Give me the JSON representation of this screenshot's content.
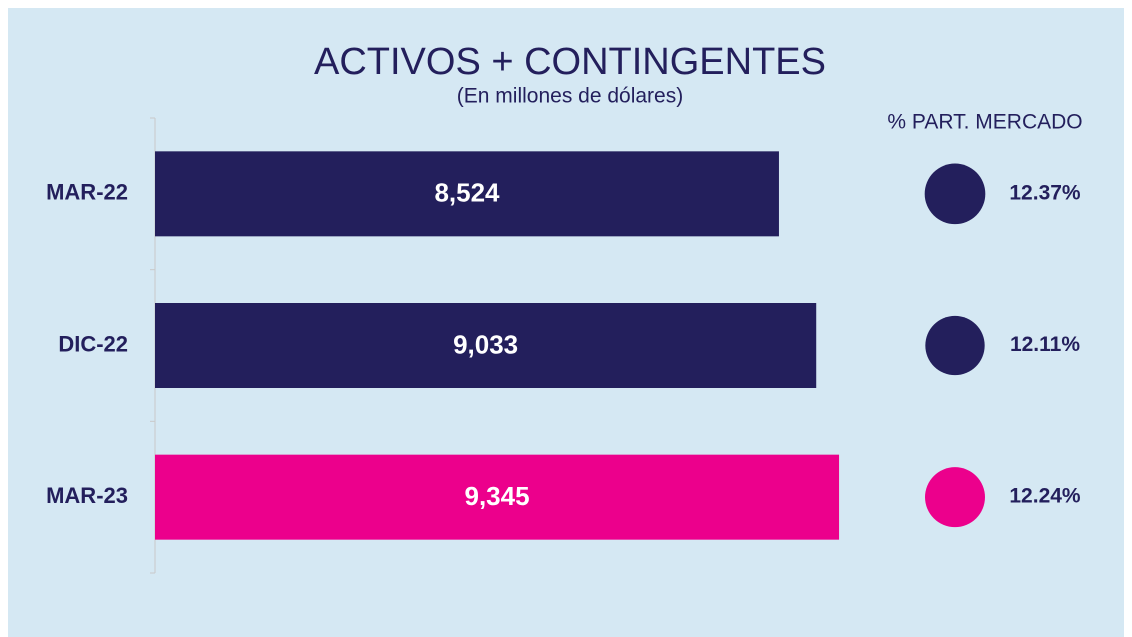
{
  "chart_data": {
    "type": "bar",
    "orientation": "horizontal",
    "title": "ACTIVOS + CONTINGENTES",
    "subtitle": "(En millones de dólares)",
    "categories": [
      "MAR-22",
      "DIC-22",
      "MAR-23"
    ],
    "values": [
      8524,
      9033,
      9345
    ],
    "value_labels": [
      "8,524",
      "9,033",
      "9,345"
    ],
    "colors": [
      "#231f5c",
      "#231f5c",
      "#ec008c"
    ],
    "xlim": [
      0,
      10000
    ],
    "share": {
      "name": "% PART. MERCADO",
      "values": [
        12.37,
        12.11,
        12.24
      ],
      "value_labels": [
        "12.37%",
        "12.11%",
        "12.24%"
      ]
    }
  }
}
